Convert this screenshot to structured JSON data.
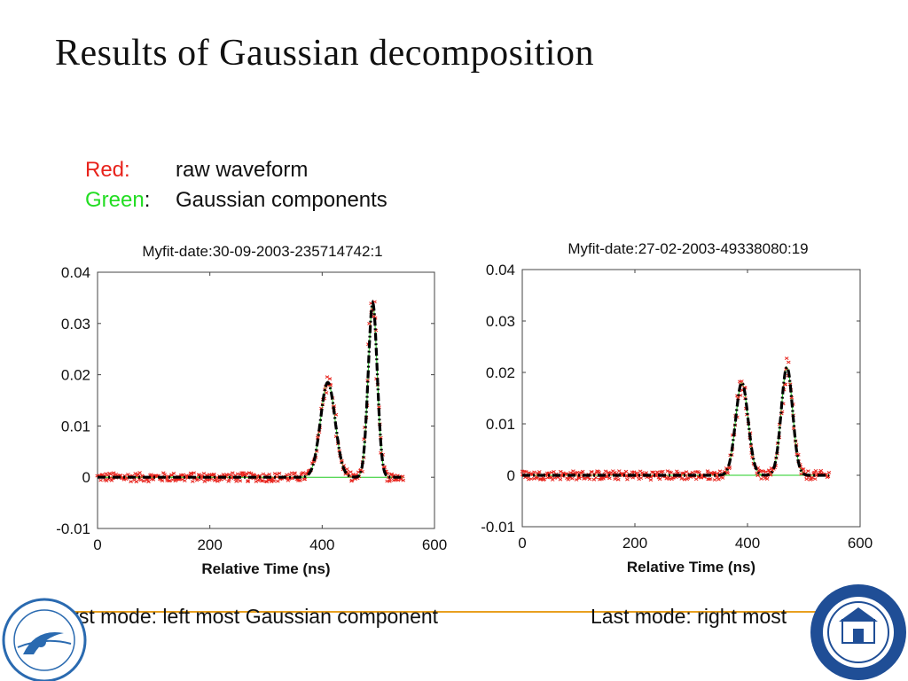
{
  "slide": {
    "title": "Results of Gaussian decomposition",
    "legend": {
      "red_label": "Red",
      "red_colon": ":",
      "red_desc": "raw waveform",
      "green_label": "Green",
      "green_colon": ":",
      "green_desc": "Gaussian components"
    },
    "bottom_left": "First mode: left most Gaussian component",
    "bottom_right": "Last mode: right most",
    "colors": {
      "raw": "#e8231c",
      "fit": "#000000",
      "components": "#22cc22",
      "legend_red": "#e8231c",
      "legend_green": "#22dd22",
      "divider": "#e8a020"
    }
  },
  "chart_data": [
    {
      "type": "line",
      "title": "Myfit-date:30-09-2003-235714742:1",
      "xlabel": "Relative Time (ns)",
      "ylabel": "",
      "xlim": [
        0,
        600
      ],
      "ylim": [
        -0.01,
        0.04
      ],
      "x_ticks": [
        "0",
        "200",
        "400",
        "600"
      ],
      "y_ticks": [
        "-0.01",
        "0",
        "0.01",
        "0.02",
        "0.03",
        "0.04"
      ],
      "grid": false,
      "x_range_data": [
        0,
        545
      ],
      "series": [
        {
          "style": "raw-points",
          "color": "#e8231c"
        },
        {
          "style": "fit-dashdot",
          "color": "#000000"
        },
        {
          "style": "components",
          "color": "#22cc22"
        }
      ],
      "components": [
        {
          "center": 410,
          "amplitude": 0.0185,
          "sigma": 13
        },
        {
          "center": 490,
          "amplitude": 0.034,
          "sigma": 8
        }
      ]
    },
    {
      "type": "line",
      "title": "Myfit-date:27-02-2003-49338080:19",
      "xlabel": "Relative Time (ns)",
      "ylabel": "",
      "xlim": [
        0,
        600
      ],
      "ylim": [
        -0.01,
        0.04
      ],
      "x_ticks": [
        "0",
        "200",
        "400",
        "600"
      ],
      "y_ticks": [
        "-0.01",
        "0",
        "0.01",
        "0.02",
        "0.03",
        "0.04"
      ],
      "grid": false,
      "x_range_data": [
        0,
        545
      ],
      "series": [
        {
          "style": "raw-points",
          "color": "#e8231c"
        },
        {
          "style": "fit-dashdot",
          "color": "#000000"
        },
        {
          "style": "components",
          "color": "#22cc22"
        }
      ],
      "components": [
        {
          "center": 390,
          "amplitude": 0.018,
          "sigma": 11
        },
        {
          "center": 470,
          "amplitude": 0.021,
          "sigma": 10
        }
      ]
    }
  ]
}
